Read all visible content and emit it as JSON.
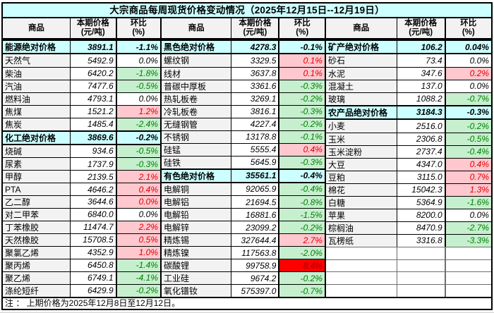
{
  "title": "大宗商品每周现货价格变动情况（2025年12月15日--12月19日）",
  "note": "注 ： 上期价格为2025年12月8日至12月12日。",
  "columns": {
    "commodity": "商品",
    "price_line1": "本期价格",
    "price_line2": "(元/吨)",
    "pct_line1": "环比",
    "pct_line2": "(%)"
  },
  "colors": {
    "title_header_bg": "#CCFFFF",
    "column_header_bg": "#F2F2F2",
    "category_row_bg": "#CCFFFF",
    "name_column_bg": "#F2F2F2",
    "increase_bg": "#FFC7CE",
    "increase_text": "#E00000",
    "decrease_bg": "#C6EFCE",
    "decrease_text": "#008000",
    "surge_bg": "#FF0000",
    "surge_text": "#9C0006"
  },
  "groups": [
    {
      "id": "energy-chemical",
      "rows": [
        {
          "type": "category",
          "name": "能源绝对价格",
          "price": "3891.1",
          "pct": "-1.1%"
        },
        {
          "type": "item",
          "name": "天然气",
          "price": "5492.9",
          "pct": "0.0%",
          "trend": "flat"
        },
        {
          "type": "item",
          "name": "柴油",
          "price": "6420.2",
          "pct": "-1.8%",
          "trend": "down"
        },
        {
          "type": "item",
          "name": "汽油",
          "price": "7477.6",
          "pct": "-0.5%",
          "trend": "down"
        },
        {
          "type": "item",
          "name": "燃料油",
          "price": "4793.1",
          "pct": "0.0%",
          "trend": "flat"
        },
        {
          "type": "item",
          "name": "焦煤",
          "price": "1521.2",
          "pct": "1.2%",
          "trend": "up"
        },
        {
          "type": "item",
          "name": "焦炭",
          "price": "1485.4",
          "pct": "-2.4%",
          "trend": "down"
        },
        {
          "type": "category",
          "name": "化工绝对价格",
          "price": "3869.6",
          "pct": "-0.2%"
        },
        {
          "type": "item",
          "name": "烧碱",
          "price": "934.6",
          "pct": "-0.5%",
          "trend": "down"
        },
        {
          "type": "item",
          "name": "尿素",
          "price": "1737.9",
          "pct": "-0.3%",
          "trend": "down"
        },
        {
          "type": "item",
          "name": "甲醇",
          "price": "2139.5",
          "pct": "2.1%",
          "trend": "up"
        },
        {
          "type": "item",
          "name": "PTA",
          "price": "4646.2",
          "pct": "0.4%",
          "trend": "up"
        },
        {
          "type": "item",
          "name": "乙二醇",
          "price": "3644.6",
          "pct": "0.0%",
          "trend": "up"
        },
        {
          "type": "item",
          "name": "对二甲苯",
          "price": "6840.0",
          "pct": "0.0%",
          "trend": "flat"
        },
        {
          "type": "item",
          "name": "丁苯橡胶",
          "price": "11474.7",
          "pct": "2.2%",
          "trend": "up"
        },
        {
          "type": "item",
          "name": "天然橡胶",
          "price": "15708.5",
          "pct": "0.5%",
          "trend": "up"
        },
        {
          "type": "item",
          "name": "聚氯乙烯",
          "price": "4352.9",
          "pct": "1.0%",
          "trend": "up"
        },
        {
          "type": "item",
          "name": "聚丙烯",
          "price": "6450.8",
          "pct": "-1.4%",
          "trend": "down"
        },
        {
          "type": "item",
          "name": "聚乙烯",
          "price": "6749.1",
          "pct": "-4.1%",
          "trend": "down"
        },
        {
          "type": "item",
          "name": "涤纶短纤",
          "price": "6429.9",
          "pct": "-0.2%",
          "trend": "down"
        }
      ]
    },
    {
      "id": "ferrous-nonferrous",
      "rows": [
        {
          "type": "category",
          "name": "黑色绝对价格",
          "price": "4278.3",
          "pct": "-0.1%"
        },
        {
          "type": "item",
          "name": "螺纹钢",
          "price": "3329.5",
          "pct": "0.1%",
          "trend": "up"
        },
        {
          "type": "item",
          "name": "线材",
          "price": "3637.8",
          "pct": "0.1%",
          "trend": "up"
        },
        {
          "type": "item",
          "name": "普碳中厚板",
          "price": "3361.6",
          "pct": "-0.3%",
          "trend": "down"
        },
        {
          "type": "item",
          "name": "热轧板卷",
          "price": "3269.1",
          "pct": "-0.2%",
          "trend": "down"
        },
        {
          "type": "item",
          "name": "冷轧板卷",
          "price": "3816.1",
          "pct": "-0.3%",
          "trend": "down"
        },
        {
          "type": "item",
          "name": "无缝钢管",
          "price": "4227.4",
          "pct": "-0.2%",
          "trend": "down"
        },
        {
          "type": "item",
          "name": "不锈钢",
          "price": "13178.8",
          "pct": "-0.1%",
          "trend": "down"
        },
        {
          "type": "item",
          "name": "硅锰",
          "price": "5555.4",
          "pct": "0.4%",
          "trend": "up"
        },
        {
          "type": "item",
          "name": "硅铁",
          "price": "5645.9",
          "pct": "-0.3%",
          "trend": "down"
        },
        {
          "type": "category",
          "name": "有色绝对价格",
          "price": "35561.1",
          "pct": "-0.4%"
        },
        {
          "type": "item",
          "name": "电解铜",
          "price": "92065.9",
          "pct": "-0.4%",
          "trend": "down"
        },
        {
          "type": "item",
          "name": "电解铝",
          "price": "21694.5",
          "pct": "-0.8%",
          "trend": "down"
        },
        {
          "type": "item",
          "name": "电解铅",
          "price": "16881.6",
          "pct": "-1.5%",
          "trend": "down"
        },
        {
          "type": "item",
          "name": "电解锌",
          "price": "23099.2",
          "pct": "-0.2%",
          "trend": "down"
        },
        {
          "type": "item",
          "name": "精炼锡",
          "price": "327644.4",
          "pct": "2.7%",
          "trend": "up"
        },
        {
          "type": "item",
          "name": "精炼镍",
          "price": "117563.8",
          "pct": "-2.0%",
          "trend": "down"
        },
        {
          "type": "item",
          "name": "碳酸锂",
          "price": "99758.9",
          "pct": "8.4%",
          "trend": "hot"
        },
        {
          "type": "item",
          "name": "工业硅",
          "price": "9674.2",
          "pct": "-0.2%",
          "trend": "down"
        },
        {
          "type": "item",
          "name": "氧化镨钕",
          "price": "575397.0",
          "pct": "-0.7%",
          "trend": "down"
        }
      ]
    },
    {
      "id": "mineral-agricultural",
      "rows": [
        {
          "type": "category",
          "name": "矿产绝对价格",
          "price": "106.2",
          "pct": "0.04%"
        },
        {
          "type": "item",
          "name": "砂石",
          "price": "73.4",
          "pct": "0.0%",
          "trend": "flat"
        },
        {
          "type": "item",
          "name": "水泥",
          "price": "347.6",
          "pct": "0.2%",
          "trend": "up"
        },
        {
          "type": "item",
          "name": "混凝土",
          "price": "137.0",
          "pct": "0.0%",
          "trend": "flat"
        },
        {
          "type": "item",
          "name": "玻璃",
          "price": "1088.2",
          "pct": "-0.7%",
          "trend": "down"
        },
        {
          "type": "category",
          "name": "农产品绝对价格",
          "price": "3184.3",
          "pct": "-0.3%"
        },
        {
          "type": "item",
          "name": "小麦",
          "price": "2516.0",
          "pct": "-0.2%",
          "trend": "down"
        },
        {
          "type": "item",
          "name": "玉米",
          "price": "2306.8",
          "pct": "-0.5%",
          "trend": "down"
        },
        {
          "type": "item",
          "name": "玉米淀粉",
          "price": "2737.4",
          "pct": "-0.4%",
          "trend": "down"
        },
        {
          "type": "item",
          "name": "大豆",
          "price": "4347.0",
          "pct": "0.4%",
          "trend": "up"
        },
        {
          "type": "item",
          "name": "豆粕",
          "price": "3115.0",
          "pct": "0.7%",
          "trend": "up"
        },
        {
          "type": "item",
          "name": "棉花",
          "price": "15042.3",
          "pct": "1.3%",
          "trend": "up"
        },
        {
          "type": "item",
          "name": "白糖",
          "price": "5364.9",
          "pct": "-1.6%",
          "trend": "down"
        },
        {
          "type": "item",
          "name": "苹果",
          "price": "8200.0",
          "pct": "0.0%",
          "trend": "flat"
        },
        {
          "type": "item",
          "name": "棕榈油",
          "price": "8470.9",
          "pct": "-2.7%",
          "trend": "down"
        },
        {
          "type": "item",
          "name": "瓦楞纸",
          "price": "3316.8",
          "pct": "-3.3%",
          "trend": "down"
        },
        {
          "type": "empty",
          "name": "",
          "price": "",
          "pct": ""
        },
        {
          "type": "empty",
          "name": "",
          "price": "",
          "pct": ""
        },
        {
          "type": "empty",
          "name": "",
          "price": "",
          "pct": ""
        },
        {
          "type": "empty",
          "name": "",
          "price": "",
          "pct": ""
        }
      ]
    }
  ]
}
